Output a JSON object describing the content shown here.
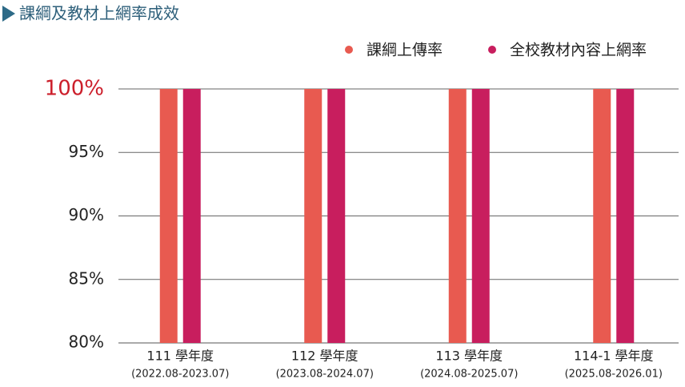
{
  "chart_data": {
    "type": "bar",
    "title": "課綱及教材上網率成效",
    "categories": [
      "111 學年度",
      "112 學年度",
      "113 學年度",
      "114-1 學年度"
    ],
    "category_periods": [
      "(2022.08-2023.07)",
      "(2023.08-2024.07)",
      "(2024.08-2025.07)",
      "(2025.08-2026.01)"
    ],
    "series": [
      {
        "name": "課綱上傳率",
        "color": "#e85a50",
        "values": [
          100,
          100,
          100,
          100
        ]
      },
      {
        "name": "全校教材內容上網率",
        "color": "#c81e5e",
        "values": [
          100,
          100,
          100,
          100
        ]
      }
    ],
    "ylim": [
      80,
      100
    ],
    "yticks": [
      {
        "value": 80,
        "label": "80%"
      },
      {
        "value": 85,
        "label": "85%"
      },
      {
        "value": 90,
        "label": "90%"
      },
      {
        "value": 95,
        "label": "95%"
      },
      {
        "value": 100,
        "label": "100%",
        "color": "#cc1f2b"
      }
    ],
    "grid": true,
    "legend": "top-right"
  }
}
